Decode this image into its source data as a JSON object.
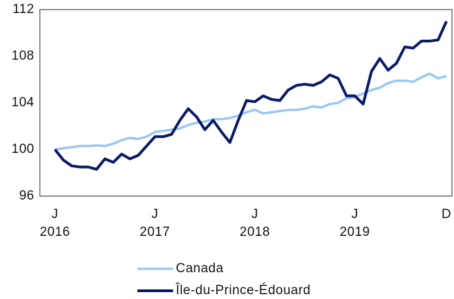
{
  "chart_data": {
    "type": "line",
    "categories": [
      "J",
      null,
      null,
      null,
      null,
      null,
      null,
      null,
      null,
      null,
      null,
      null,
      "J",
      null,
      null,
      null,
      null,
      null,
      null,
      null,
      null,
      null,
      null,
      null,
      "J",
      null,
      null,
      null,
      null,
      null,
      null,
      null,
      null,
      null,
      null,
      null,
      "J",
      null,
      null,
      null,
      null,
      null,
      null,
      null,
      null,
      null,
      null,
      "D"
    ],
    "category_years": [
      "2016",
      null,
      null,
      null,
      null,
      null,
      null,
      null,
      null,
      null,
      null,
      null,
      "2017",
      null,
      null,
      null,
      null,
      null,
      null,
      null,
      null,
      null,
      null,
      null,
      "2018",
      null,
      null,
      null,
      null,
      null,
      null,
      null,
      null,
      null,
      null,
      null,
      "2019",
      null,
      null,
      null,
      null,
      null,
      null,
      null,
      null,
      null,
      null,
      null
    ],
    "series": [
      {
        "name": "Canada",
        "color": "#99c8f4",
        "values": [
          100.0,
          100.1,
          100.2,
          100.3,
          100.3,
          100.35,
          100.3,
          100.5,
          100.8,
          101.0,
          100.9,
          101.1,
          101.5,
          101.6,
          101.7,
          101.8,
          102.1,
          102.3,
          102.4,
          102.6,
          102.6,
          102.7,
          102.9,
          103.2,
          103.4,
          103.1,
          103.2,
          103.3,
          103.4,
          103.4,
          103.5,
          103.7,
          103.6,
          103.9,
          104.0,
          104.4,
          104.5,
          104.8,
          105.1,
          105.3,
          105.7,
          105.9,
          105.9,
          105.8,
          106.2,
          106.5,
          106.1,
          106.3
        ]
      },
      {
        "name": "Île-du-Prince-Édouard",
        "color": "#0a1a66",
        "values": [
          100.0,
          99.1,
          98.6,
          98.5,
          98.5,
          98.3,
          99.2,
          98.9,
          99.6,
          99.2,
          99.5,
          100.3,
          101.1,
          101.1,
          101.3,
          102.5,
          103.5,
          102.8,
          101.7,
          102.5,
          101.5,
          100.6,
          102.5,
          104.2,
          104.1,
          104.6,
          104.3,
          104.2,
          105.1,
          105.5,
          105.6,
          105.5,
          105.8,
          106.4,
          106.1,
          104.6,
          104.6,
          103.9,
          106.7,
          107.8,
          106.8,
          107.4,
          108.8,
          108.7,
          109.3,
          109.3,
          109.4,
          111.0
        ]
      }
    ],
    "ylim": [
      96,
      112
    ],
    "yticks": [
      96,
      100,
      104,
      108,
      112
    ],
    "grid": false
  }
}
